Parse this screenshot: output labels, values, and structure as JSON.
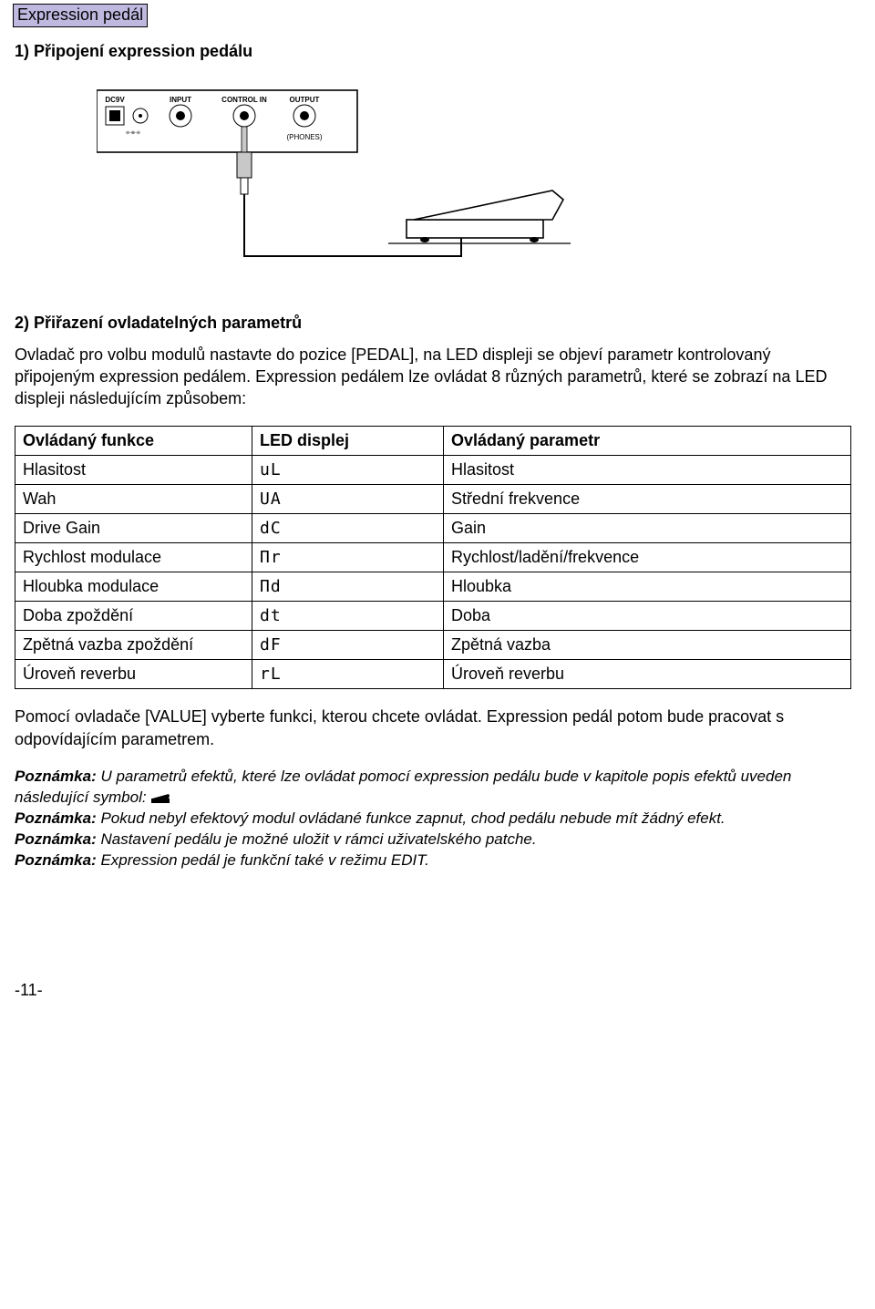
{
  "badge": "Expression pedál",
  "h1": "1) Připojení expression pedálu",
  "h2": "2) Přiřazení ovladatelných parametrů",
  "intro": "Ovladač pro volbu modulů nastavte do pozice [PEDAL], na LED displeji se objeví parametr kontrolovaný připojeným expression pedálem. Expression pedálem lze ovládat 8 různých parametrů, které se zobrazí na LED displeji následujícím způsobem:",
  "table": {
    "headers": [
      "Ovládaný funkce",
      "LED displej",
      "Ovládaný parametr"
    ],
    "rows": [
      {
        "func": "Hlasitost",
        "led": "uL",
        "param": "Hlasitost"
      },
      {
        "func": "Wah",
        "led": "UA",
        "param": "Střední frekvence"
      },
      {
        "func": "Drive Gain",
        "led": "dC",
        "param": "Gain"
      },
      {
        "func": "Rychlost modulace",
        "led": "Пr",
        "param": "Rychlost/ladění/frekvence"
      },
      {
        "func": "Hloubka modulace",
        "led": "Пd",
        "param": "Hloubka"
      },
      {
        "func": "Doba zpoždění",
        "led": "dt",
        "param": "Doba"
      },
      {
        "func": "Zpětná vazba zpoždění",
        "led": "dF",
        "param": "Zpětná vazba"
      },
      {
        "func": "Úroveň reverbu",
        "led": "rL",
        "param": "Úroveň reverbu"
      }
    ]
  },
  "after_table": "Pomocí ovladače [VALUE] vyberte funkci, kterou chcete ovládat. Expression pedál potom bude pracovat s odpovídajícím parametrem.",
  "notes": [
    {
      "label": "Poznámka:",
      "text": " U parametrů efektů, které lze ovládat pomocí expression pedálu bude v kapitole popis efektů uveden následující symbol:",
      "icon": true
    },
    {
      "label": "Poznámka:",
      "text": " Pokud nebyl efektový modul ovládané funkce zapnut, chod pedálu nebude mít žádný efekt."
    },
    {
      "label": "Poznámka:",
      "text": " Nastavení pedálu je možné uložit v rámci uživatelského patche."
    },
    {
      "label": "Poznámka:",
      "text": " Expression pedál je funkční také v režimu EDIT."
    }
  ],
  "page_num": "-11-",
  "diagram": {
    "panel_labels": [
      "DC9V",
      "INPUT",
      "CONTROL IN",
      "OUTPUT"
    ],
    "phones_label": "(PHONES)"
  }
}
